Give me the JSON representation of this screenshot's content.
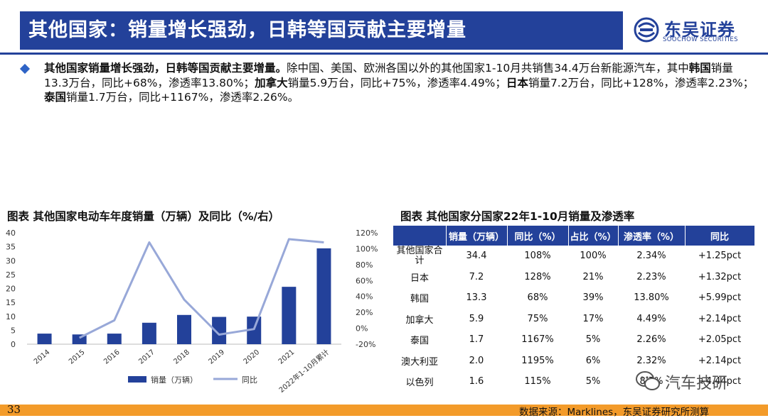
{
  "header": {
    "title": "其他国家：销量增长强劲，日韩等国贡献主要增量",
    "logo_cn": "东吴证券",
    "logo_en": "SOOCHOW SECURITIES"
  },
  "body": {
    "p1_bold": "其他国家销量增长强劲，日韩等国贡献主要增量。",
    "p2": "除中国、美国、欧洲各国以外的其他国家1-10月共销售34.4万台新能源汽车，其中",
    "p3_bold": "韩国",
    "p4": "销量13.3万台，同比+68%，渗透率13.80%；",
    "p5_bold": "加拿大",
    "p6": "销量5.9万台，同比+75%，渗透率4.49%；",
    "p7_bold": "日本",
    "p8": "销量7.2万台，同比+128%，渗透率2.23%；",
    "p9_bold": "泰国",
    "p10": "销量1.7万台，同比+1167%，渗透率2.26%。"
  },
  "left_figure": {
    "title": "图表  其他国家电动车年度销量（万辆）及同比（%/右）",
    "legend_bar": "销量（万辆）",
    "legend_line": "同比"
  },
  "chart_data": {
    "type": "bar",
    "categories": [
      "2014",
      "2015",
      "2016",
      "2017",
      "2018",
      "2019",
      "2020",
      "2021",
      "2022年1-10月累计"
    ],
    "series": [
      {
        "name": "销量（万辆）",
        "type": "bar",
        "axis": "left",
        "values": [
          3.8,
          3.5,
          3.8,
          7.7,
          10.5,
          9.8,
          9.9,
          20.6,
          34.4
        ],
        "color": "#23419a"
      },
      {
        "name": "同比",
        "type": "line",
        "axis": "right",
        "values": [
          null,
          -12,
          10,
          108,
          36,
          -8,
          -1,
          112,
          108
        ],
        "color": "#98a8d8"
      }
    ],
    "ylim_left": [
      0,
      40
    ],
    "yticks_left": [
      "0",
      "5",
      "10",
      "15",
      "20",
      "25",
      "30",
      "35",
      "40"
    ],
    "ylim_right": [
      -20,
      120
    ],
    "yticks_right": [
      "-20%",
      "0%",
      "20%",
      "40%",
      "60%",
      "80%",
      "100%",
      "120%"
    ],
    "legend": "bottom",
    "grid": false
  },
  "right_figure": {
    "title": "图表  其他国家分国家22年1-10月销量及渗透率",
    "headers": [
      "",
      "销量（万辆）",
      "同比（%）",
      "占比（%）",
      "渗透率（%）",
      "同比"
    ],
    "rows": [
      [
        "其他国家合计",
        "34.4",
        "108%",
        "100%",
        "2.34%",
        "+1.25pct"
      ],
      [
        "日本",
        "7.2",
        "128%",
        "21%",
        "2.23%",
        "+1.32pct"
      ],
      [
        "韩国",
        "13.3",
        "68%",
        "39%",
        "13.80%",
        "+5.99pct"
      ],
      [
        "加拿大",
        "5.9",
        "75%",
        "17%",
        "4.49%",
        "+2.14pct"
      ],
      [
        "泰国",
        "1.7",
        "1167%",
        "5%",
        "2.26%",
        "+2.05pct"
      ],
      [
        "澳大利亚",
        "2.0",
        "1195%",
        "6%",
        "2.32%",
        "+2.14pct"
      ],
      [
        "以色列",
        "1.6",
        "115%",
        "5%",
        "8.7%",
        "+4.44pct"
      ]
    ]
  },
  "footer": {
    "page": "33",
    "source": "数据来源：Marklines，东吴证券研究所测算",
    "watermark": "汽车技研"
  },
  "colors": {
    "brand_blue": "#23419a",
    "line_color": "#98a8d8",
    "footer_orange": "#f39b2a"
  }
}
